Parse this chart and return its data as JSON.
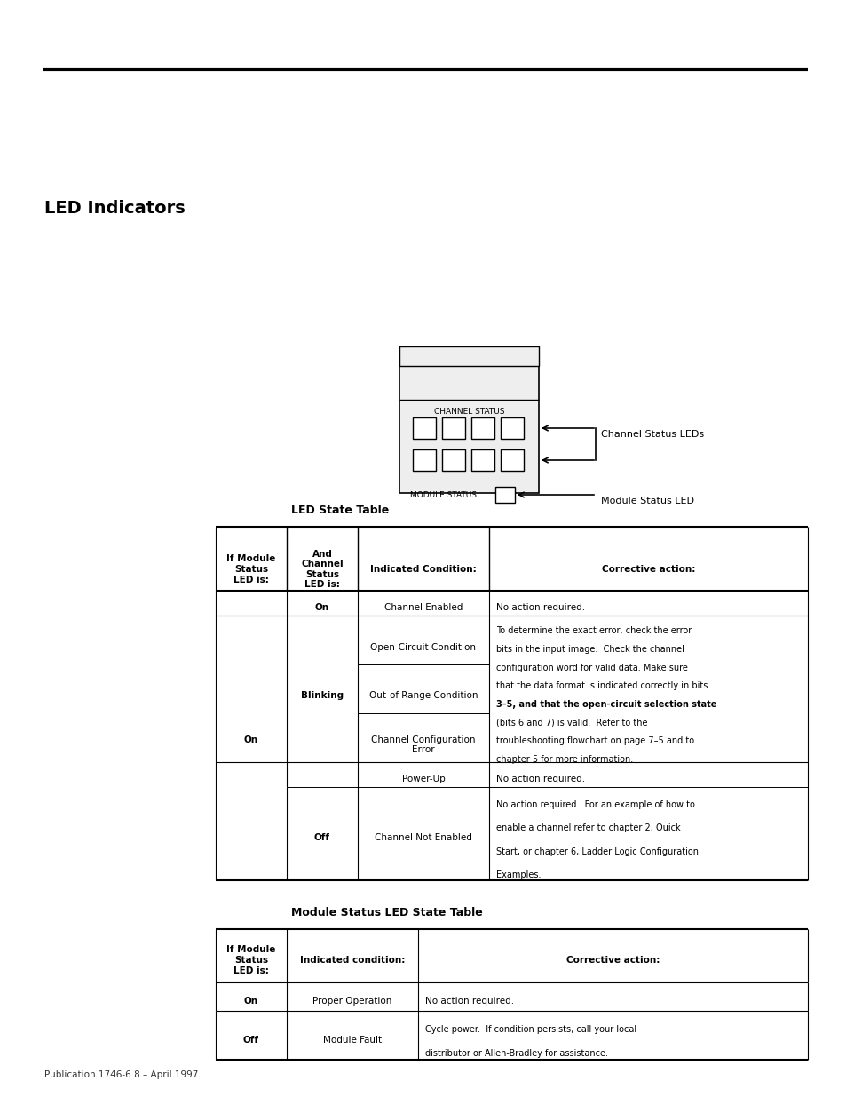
{
  "section_heading": "LED Indicators",
  "diagram": {
    "channel_status_label": "CHANNEL STATUS",
    "module_status_label": "MODULE STATUS",
    "arrow1_label": "Channel Status LEDs",
    "arrow2_label": "Module Status LED"
  },
  "table1_title": "LED State Table",
  "table1_headers": [
    "If Module\nStatus\nLED is:",
    "And\nChannel\nStatus\nLED is:",
    "Indicated Condition:",
    "Corrective action:"
  ],
  "table2_title": "Module Status LED State Table",
  "table2_headers": [
    "If Module\nStatus\nLED is:",
    "Indicated condition:",
    "Corrective action:"
  ],
  "footer": "Publication 1746-6.8 – April 1997",
  "bg_color": "#ffffff"
}
